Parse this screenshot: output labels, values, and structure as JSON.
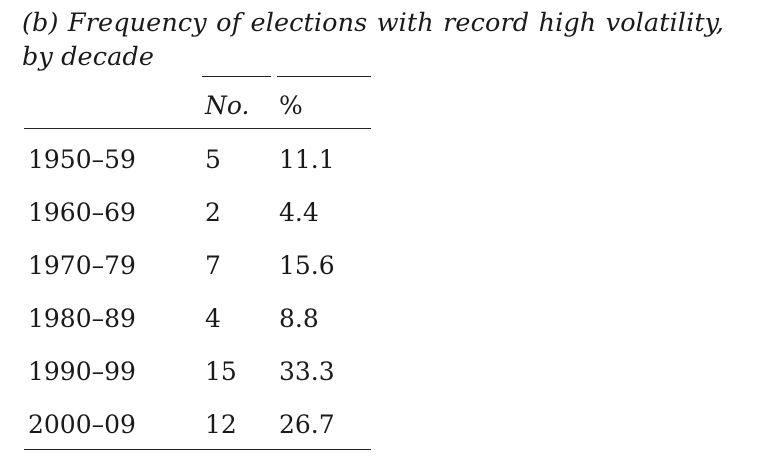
{
  "caption": "(b) Frequency of elections with record high volatility, by decade",
  "table": {
    "headers": {
      "decade": "",
      "count": "No.",
      "percent": "%"
    },
    "rows": [
      {
        "decade": "1950–59",
        "count": "5",
        "percent": "11.1"
      },
      {
        "decade": "1960–69",
        "count": "2",
        "percent": "4.4"
      },
      {
        "decade": "1970–79",
        "count": "7",
        "percent": "15.6"
      },
      {
        "decade": "1980–89",
        "count": "4",
        "percent": "8.8"
      },
      {
        "decade": "1990–99",
        "count": "15",
        "percent": "33.3"
      },
      {
        "decade": "2000–09",
        "count": "12",
        "percent": "26.7"
      }
    ]
  }
}
